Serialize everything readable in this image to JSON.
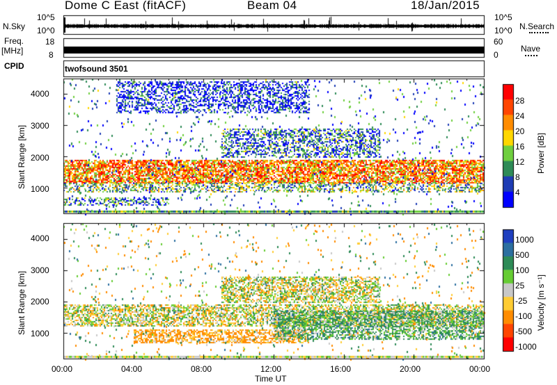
{
  "header": {
    "title": "Dome C East (fitACF)",
    "beam": "Beam 04",
    "date": "18/Jan/2015"
  },
  "status_panels": {
    "nsky_label": "N.Sky",
    "nsearch_label": "N.Search",
    "freq_label": "Freq.",
    "freq_unit": "[MHz]",
    "nave_label": "Nave",
    "cpid_label": "CPID",
    "cpid_value": "twofsound 3501",
    "noise_ticks": [
      "10^5",
      "10^0"
    ],
    "freq_ticks": [
      "18",
      "8"
    ],
    "nave_ticks": [
      "60",
      "0"
    ]
  },
  "axes": {
    "xlabel": "Time UT",
    "ylabel_top": "Slant Range [km]",
    "ylabel_bottom": "Slant Range [km]",
    "x_ticks": [
      "00:00",
      "04:00",
      "08:00",
      "12:00",
      "16:00",
      "20:00",
      "00:00"
    ],
    "y_ticks": [
      "4000",
      "3000",
      "2000",
      "1000"
    ]
  },
  "colorbars": {
    "power_label": "Power [dB]",
    "power_ticks": [
      "28",
      "24",
      "20",
      "16",
      "12",
      "8",
      "4"
    ],
    "power_colors": [
      "#0000ff",
      "#1e3cb4",
      "#2e8b57",
      "#6fcf3f",
      "#ffd700",
      "#ff8c00",
      "#ff4500",
      "#ff0000"
    ],
    "velocity_label": "Velocity [m s⁻¹]",
    "velocity_ticks": [
      "1000",
      "500",
      "100",
      "25",
      "-25",
      "-100",
      "-500",
      "-1000"
    ],
    "velocity_colors": [
      "#1f3fbf",
      "#2c6fa0",
      "#2e8b57",
      "#66cc33",
      "#c8c8c8",
      "#ffcc33",
      "#ff8c00",
      "#ff4500",
      "#ff0000"
    ]
  },
  "chart_data": [
    {
      "type": "heatmap",
      "title": "",
      "xlabel": "",
      "ylabel": "Slant Range [km]",
      "x_range": [
        "00:00",
        "24:00"
      ],
      "ylim": [
        180,
        4500
      ],
      "colorbar": "Power [dB]",
      "colorbar_range": [
        3,
        30
      ],
      "bands": [
        {
          "range_km": [
            1150,
            1900
          ],
          "time_h": [
            0,
            24
          ],
          "power_db": 22
        },
        {
          "range_km": [
            850,
            1150
          ],
          "time_h": [
            0,
            24
          ],
          "power_db": 14
        },
        {
          "range_km": [
            450,
            700
          ],
          "time_h": [
            0,
            6
          ],
          "power_db": 10
        },
        {
          "range_km": [
            2000,
            2900
          ],
          "time_h": [
            9,
            18
          ],
          "power_db": 10
        },
        {
          "range_km": [
            3400,
            4400
          ],
          "time_h": [
            3,
            14
          ],
          "power_db": 6
        }
      ]
    },
    {
      "type": "heatmap",
      "title": "",
      "xlabel": "Time UT",
      "ylabel": "Slant Range [km]",
      "x_range": [
        "00:00",
        "24:00"
      ],
      "ylim": [
        180,
        4500
      ],
      "colorbar": "Velocity [m s⁻¹]",
      "colorbar_range": [
        -1000,
        1000
      ],
      "bands": [
        {
          "range_km": [
            1200,
            1900
          ],
          "time_h": [
            0,
            24
          ],
          "velocity_ms": 0
        },
        {
          "range_km": [
            700,
            1100
          ],
          "time_h": [
            4,
            14
          ],
          "velocity_ms": -150
        },
        {
          "range_km": [
            800,
            1700
          ],
          "time_h": [
            12,
            24
          ],
          "velocity_ms": 120
        },
        {
          "range_km": [
            2000,
            2800
          ],
          "time_h": [
            9,
            18
          ],
          "velocity_ms": 0
        }
      ]
    }
  ]
}
